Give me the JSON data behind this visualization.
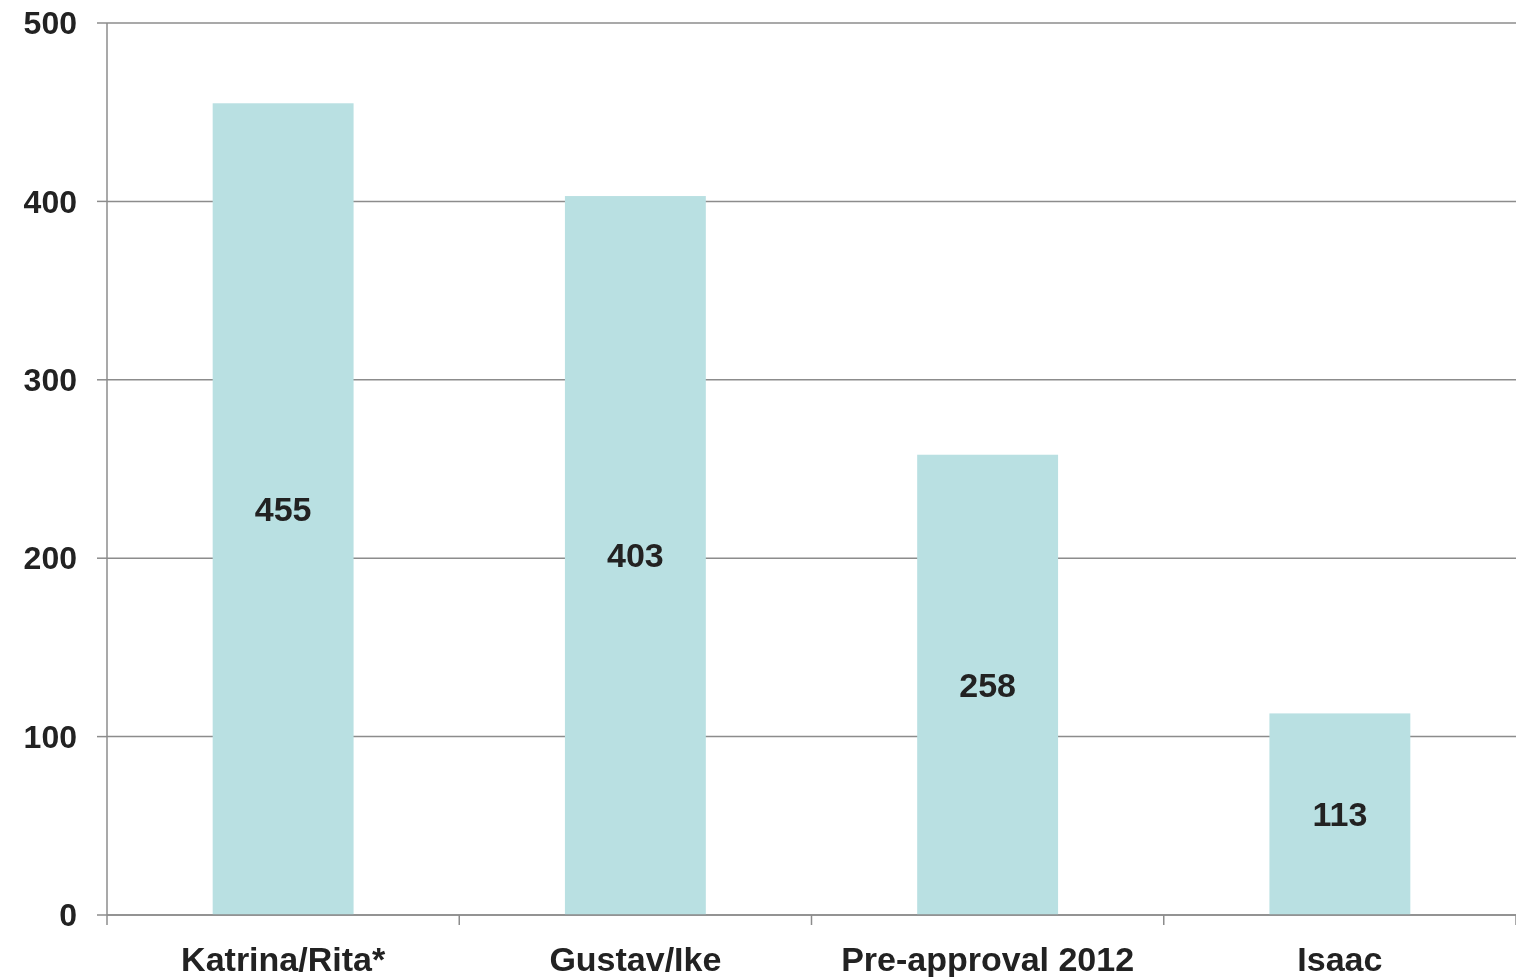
{
  "chart_data": {
    "type": "bar",
    "categories": [
      "Katrina/Rita*",
      "Gustav/Ike",
      "Pre-approval 2012",
      "Isaac"
    ],
    "values": [
      455,
      403,
      258,
      113
    ],
    "color": "#b9e0e2",
    "ylim": [
      0,
      500
    ],
    "yticks": [
      0,
      100,
      200,
      300,
      400,
      500
    ],
    "grid": "y",
    "data_labels": true
  }
}
